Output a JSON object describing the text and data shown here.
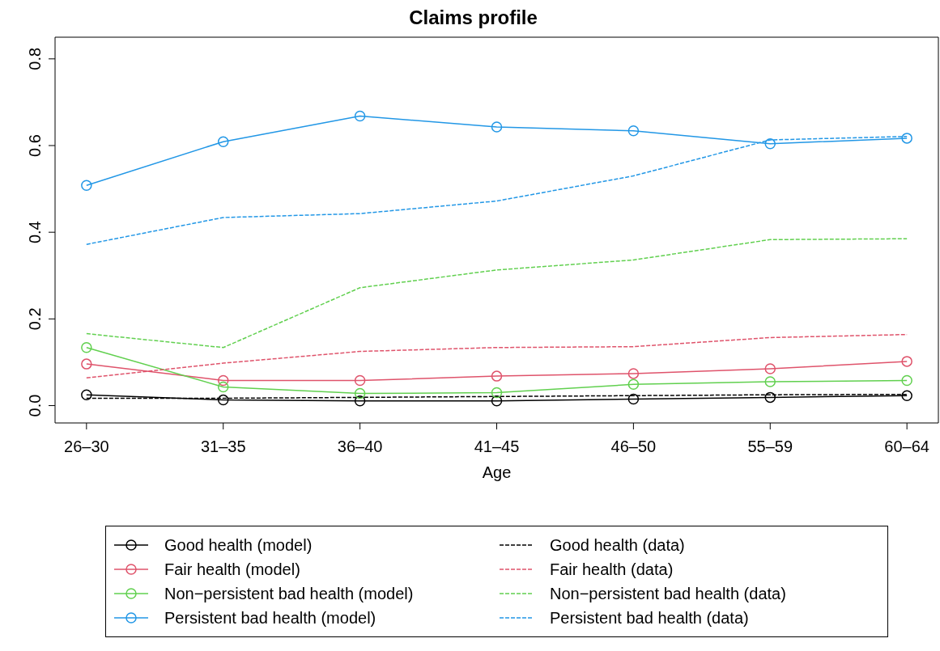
{
  "chart_data": {
    "type": "line",
    "title": "Claims profile",
    "xlabel": "Age",
    "categories": [
      "26–30",
      "31–35",
      "36–40",
      "41–45",
      "46–50",
      "55–59",
      "60–64"
    ],
    "ylim": [
      -0.04,
      0.85
    ],
    "yticks": [
      {
        "value": 0,
        "label": "0.0"
      },
      {
        "value": 0.2,
        "label": "0.2"
      },
      {
        "value": 0.4,
        "label": "0.4"
      },
      {
        "value": 0.6,
        "label": "0.6"
      },
      {
        "value": 0.8,
        "label": "0.8"
      }
    ],
    "grid": false,
    "legend": "bottom",
    "series": [
      {
        "name": "Good health (model)",
        "color": "#000000",
        "marker": "circle",
        "line_style": "solid",
        "values": [
          0.025,
          0.013,
          0.011,
          0.011,
          0.015,
          0.019,
          0.023
        ]
      },
      {
        "name": "Fair health (model)",
        "color": "#df536b",
        "marker": "circle",
        "line_style": "solid",
        "values": [
          0.096,
          0.058,
          0.058,
          0.068,
          0.074,
          0.085,
          0.102
        ]
      },
      {
        "name": "Non−persistent bad health (model)",
        "color": "#61d04f",
        "marker": "circle",
        "line_style": "solid",
        "values": [
          0.134,
          0.043,
          0.028,
          0.03,
          0.049,
          0.055,
          0.058
        ]
      },
      {
        "name": "Persistent bad health (model)",
        "color": "#2297e6",
        "marker": "circle",
        "line_style": "solid",
        "values": [
          0.508,
          0.609,
          0.668,
          0.643,
          0.634,
          0.604,
          0.617
        ]
      },
      {
        "name": "Good health (data)",
        "color": "#000000",
        "marker": "none",
        "line_style": "dashed",
        "values": [
          0.017,
          0.017,
          0.019,
          0.021,
          0.023,
          0.025,
          0.026
        ]
      },
      {
        "name": "Fair health (data)",
        "color": "#df536b",
        "marker": "none",
        "line_style": "dashed",
        "values": [
          0.064,
          0.098,
          0.125,
          0.134,
          0.136,
          0.157,
          0.164
        ]
      },
      {
        "name": "Non−persistent bad health (data)",
        "color": "#61d04f",
        "marker": "none",
        "line_style": "dashed",
        "values": [
          0.166,
          0.134,
          0.272,
          0.313,
          0.336,
          0.383,
          0.385
        ]
      },
      {
        "name": "Persistent bad health (data)",
        "color": "#2297e6",
        "marker": "none",
        "line_style": "dashed",
        "values": [
          0.372,
          0.434,
          0.443,
          0.472,
          0.53,
          0.613,
          0.621
        ]
      }
    ]
  }
}
